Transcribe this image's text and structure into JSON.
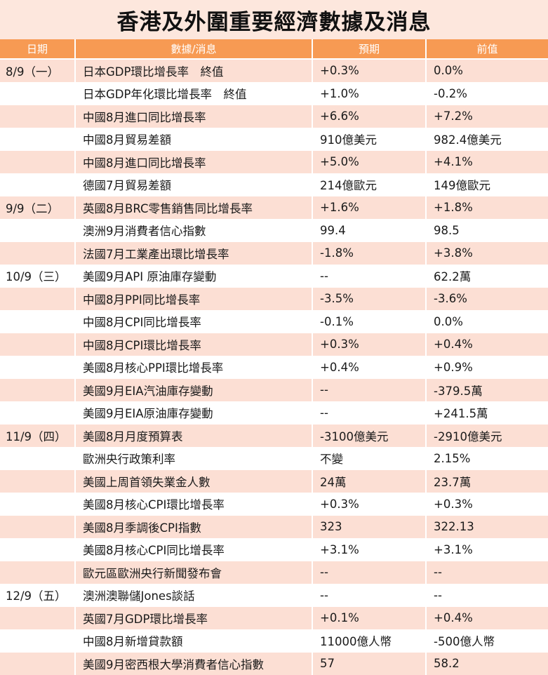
{
  "title": "香港及外圍重要經濟數據及消息",
  "headers": [
    "日期",
    "數據/消息",
    "預期",
    "前值"
  ],
  "rows": [
    {
      "date": "8/9（一）",
      "item": "日本GDP環比增長率　終值",
      "forecast": "+0.3%",
      "previous": "0.0%"
    },
    {
      "date": "",
      "item": "日本GDP年化環比增長率　終值",
      "forecast": "+1.0%",
      "previous": "-0.2%"
    },
    {
      "date": "",
      "item": "中國8月進口同比增長率",
      "forecast": "+6.6%",
      "previous": "+7.2%"
    },
    {
      "date": "",
      "item": "中國8月貿易差額",
      "forecast": "910億美元",
      "previous": "982.4億美元"
    },
    {
      "date": "",
      "item": "中國8月進口同比增長率",
      "forecast": "+5.0%",
      "previous": "+4.1%"
    },
    {
      "date": "",
      "item": "德國7月貿易差額",
      "forecast": "214億歐元",
      "previous": "149億歐元"
    },
    {
      "date": "9/9（二）",
      "item": "英國8月BRC零售銷售同比增長率",
      "forecast": "+1.6%",
      "previous": "+1.8%"
    },
    {
      "date": "",
      "item": "澳洲9月消費者信心指數",
      "forecast": "99.4",
      "previous": "98.5"
    },
    {
      "date": "",
      "item": "法國7月工業產出環比增長率",
      "forecast": "-1.8%",
      "previous": "+3.8%"
    },
    {
      "date": "10/9（三）",
      "item": "美國9月API 原油庫存變動",
      "forecast": "--",
      "previous": "62.2萬"
    },
    {
      "date": "",
      "item": "中國8月PPI同比增長率",
      "forecast": "-3.5%",
      "previous": "-3.6%"
    },
    {
      "date": "",
      "item": "中國8月CPI同比增長率",
      "forecast": "-0.1%",
      "previous": "0.0%"
    },
    {
      "date": "",
      "item": "中國8月CPI環比增長率",
      "forecast": "+0.3%",
      "previous": "+0.4%"
    },
    {
      "date": "",
      "item": "美國8月核心PPI環比增長率",
      "forecast": "+0.4%",
      "previous": "+0.9%"
    },
    {
      "date": "",
      "item": "美國9月EIA汽油庫存變動",
      "forecast": "--",
      "previous": "-379.5萬"
    },
    {
      "date": "",
      "item": "美國9月EIA原油庫存變動",
      "forecast": "--",
      "previous": "+241.5萬"
    },
    {
      "date": "11/9（四）",
      "item": "美國8月月度預算表",
      "forecast": "-3100億美元",
      "previous": "-2910億美元"
    },
    {
      "date": "",
      "item": "歐洲央行政策利率",
      "forecast": "不變",
      "previous": "2.15%"
    },
    {
      "date": "",
      "item": "美國上周首領失業金人數",
      "forecast": "24萬",
      "previous": "23.7萬"
    },
    {
      "date": "",
      "item": "美國8月核心CPI環比增長率",
      "forecast": "+0.3%",
      "previous": "+0.3%"
    },
    {
      "date": "",
      "item": "美國8月季調後CPI指數",
      "forecast": "323",
      "previous": "322.13"
    },
    {
      "date": "",
      "item": "美國8月核心CPI同比增長率",
      "forecast": "+3.1%",
      "previous": "+3.1%"
    },
    {
      "date": "",
      "item": "歐元區歐洲央行新聞發布會",
      "forecast": "--",
      "previous": "--"
    },
    {
      "date": "12/9（五）",
      "item": "澳洲澳聯儲Jones談話",
      "forecast": "--",
      "previous": "--"
    },
    {
      "date": "",
      "item": "英國7月GDP環比增長率",
      "forecast": "+0.1%",
      "previous": "+0.4%"
    },
    {
      "date": "",
      "item": "中國8月新增貸款額",
      "forecast": "11000億人幣",
      "previous": "-500億人幣"
    },
    {
      "date": "",
      "item": "美國9月密西根大學消費者信心指數",
      "forecast": "57",
      "previous": "58.2"
    }
  ],
  "colors": {
    "header_bg": "#f79a53",
    "title_bg": "#fde7dd",
    "stripe": "#fcdfd4"
  }
}
